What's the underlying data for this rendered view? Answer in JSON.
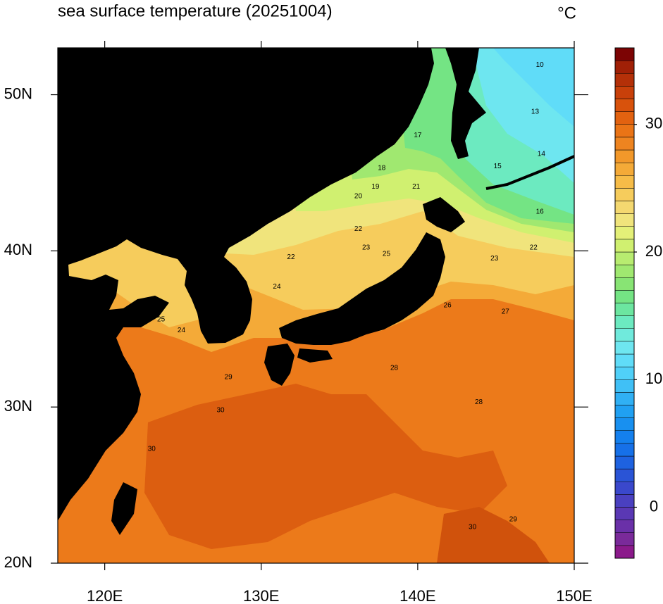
{
  "chart_data": {
    "type": "contour-map",
    "title": "sea surface temperature (20251004)",
    "units": "°C",
    "xlim": [
      117,
      150
    ],
    "xticks": [
      {
        "value": 120,
        "label": "120E"
      },
      {
        "value": 130,
        "label": "130E"
      },
      {
        "value": 140,
        "label": "140E"
      },
      {
        "value": 150,
        "label": "150E"
      }
    ],
    "ylim": [
      20,
      53
    ],
    "yticks": [
      {
        "value": 20,
        "label": "20N"
      },
      {
        "value": 30,
        "label": "30N"
      },
      {
        "value": 40,
        "label": "40N"
      },
      {
        "value": 50,
        "label": "50N"
      }
    ],
    "colorbar": {
      "lim": [
        -4,
        36
      ],
      "ticks": [
        0,
        10,
        20,
        30
      ],
      "colors": [
        "#8b1a8b",
        "#7a2a9a",
        "#6a30a8",
        "#5a38b4",
        "#4a40c0",
        "#3a48cc",
        "#2a54d6",
        "#1e62e0",
        "#1670e8",
        "#1480ee",
        "#1890f0",
        "#20a0f2",
        "#30b0f4",
        "#40c0f6",
        "#50d0f8",
        "#60dcf8",
        "#6ee6f0",
        "#70eadc",
        "#6ceac0",
        "#6ce6a0",
        "#74e484",
        "#88e474",
        "#a0e870",
        "#b8ec70",
        "#d0f070",
        "#e4f078",
        "#f0e47c",
        "#f4d870",
        "#f6cc5c",
        "#f6bc48",
        "#f4aa38",
        "#f2982a",
        "#ee8420",
        "#ea7416",
        "#e26210",
        "#d8520c",
        "#c8400a",
        "#b43008",
        "#a02006",
        "#7c0404"
      ]
    },
    "contour_labels": [
      {
        "value": 10,
        "lon": 147.8,
        "lat": 51.9
      },
      {
        "value": 13,
        "lon": 147.5,
        "lat": 48.9
      },
      {
        "value": 14,
        "lon": 147.9,
        "lat": 46.2
      },
      {
        "value": 15,
        "lon": 145.1,
        "lat": 45.4
      },
      {
        "value": 16,
        "lon": 147.8,
        "lat": 42.5
      },
      {
        "value": 17,
        "lon": 140.0,
        "lat": 47.4
      },
      {
        "value": 18,
        "lon": 137.7,
        "lat": 45.3
      },
      {
        "value": 19,
        "lon": 137.3,
        "lat": 44.1
      },
      {
        "value": 20,
        "lon": 136.2,
        "lat": 43.5
      },
      {
        "value": 21,
        "lon": 139.9,
        "lat": 44.1
      },
      {
        "value": 22,
        "lon": 136.2,
        "lat": 41.4
      },
      {
        "value": 22,
        "lon": 131.9,
        "lat": 39.6
      },
      {
        "value": 23,
        "lon": 136.7,
        "lat": 40.2
      },
      {
        "value": 24,
        "lon": 131.0,
        "lat": 37.7
      },
      {
        "value": 25,
        "lon": 138.0,
        "lat": 39.8
      },
      {
        "value": 25,
        "lon": 123.6,
        "lat": 35.6
      },
      {
        "value": 24,
        "lon": 124.9,
        "lat": 34.9
      },
      {
        "value": 26,
        "lon": 141.9,
        "lat": 36.5
      },
      {
        "value": 27,
        "lon": 145.6,
        "lat": 36.1
      },
      {
        "value": 28,
        "lon": 138.5,
        "lat": 32.5
      },
      {
        "value": 29,
        "lon": 127.9,
        "lat": 31.9
      },
      {
        "value": 30,
        "lon": 127.4,
        "lat": 29.8
      },
      {
        "value": 30,
        "lon": 123.0,
        "lat": 27.3
      },
      {
        "value": 29,
        "lon": 146.1,
        "lat": 22.8
      },
      {
        "value": 30,
        "lon": 143.5,
        "lat": 22.3
      },
      {
        "value": 28,
        "lon": 143.9,
        "lat": 30.3
      },
      {
        "value": 22,
        "lon": 147.4,
        "lat": 40.2
      },
      {
        "value": 23,
        "lon": 144.9,
        "lat": 39.5
      }
    ]
  }
}
